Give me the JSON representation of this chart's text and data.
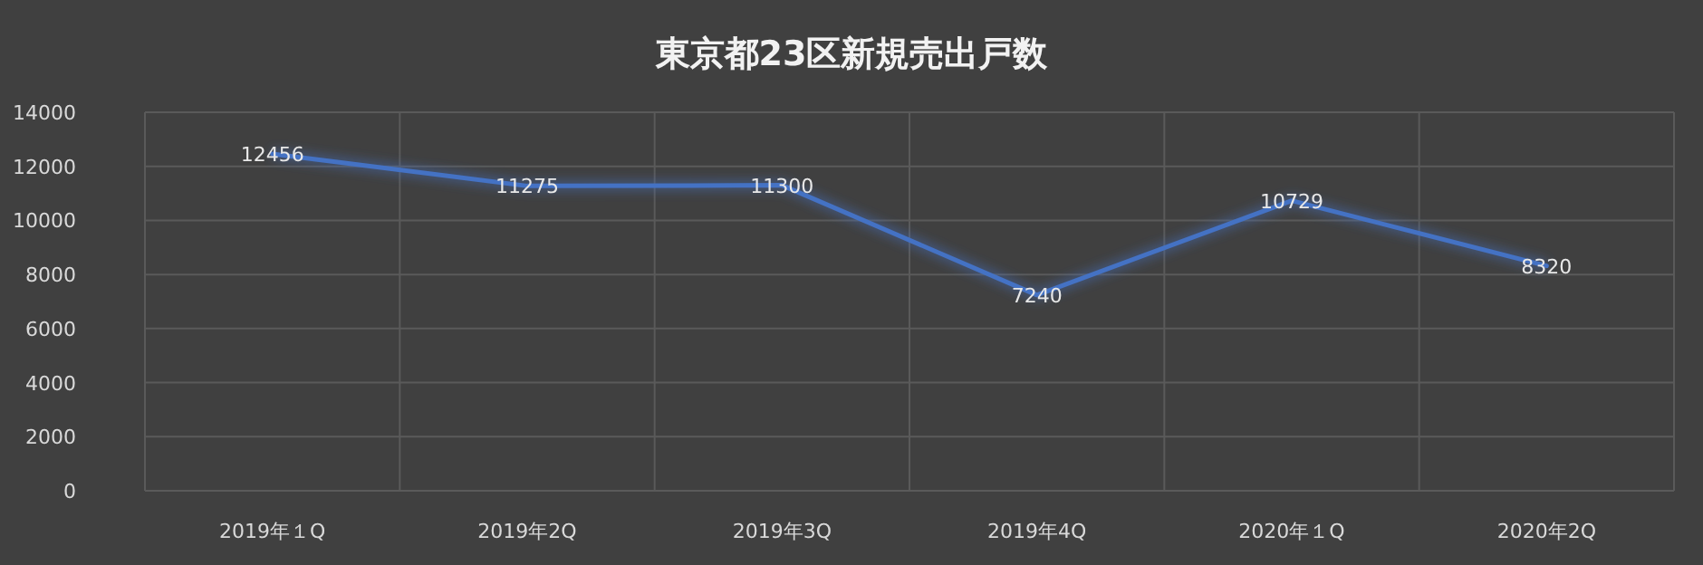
{
  "chart_data": {
    "type": "line",
    "title": "東京都23区新規売出戸数",
    "categories": [
      "2019年１Q",
      "2019年2Q",
      "2019年3Q",
      "2019年4Q",
      "2020年１Q",
      "2020年2Q"
    ],
    "values": [
      12456,
      11275,
      11300,
      7240,
      10729,
      8320
    ],
    "color": "#4472c4",
    "ylim": [
      0,
      14000
    ],
    "yticks": [
      0,
      2000,
      4000,
      6000,
      8000,
      10000,
      12000,
      14000
    ],
    "grid": true,
    "data_labels": true
  }
}
